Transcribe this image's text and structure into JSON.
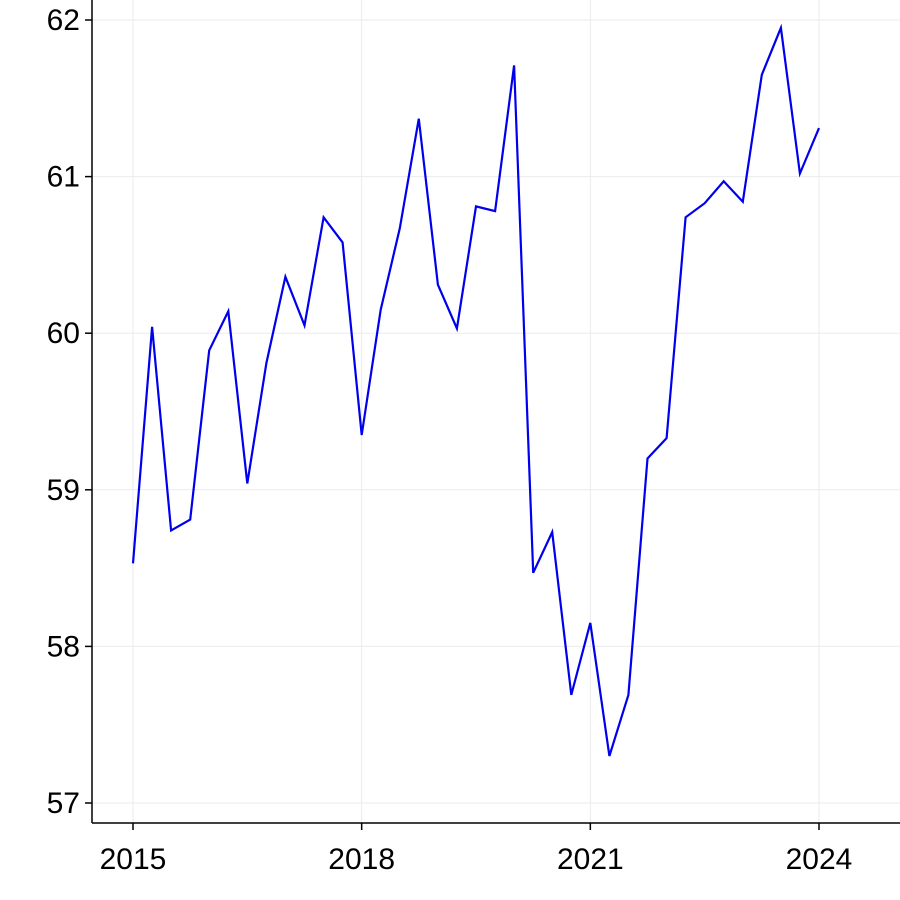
{
  "chart_data": {
    "type": "line",
    "title": "",
    "xlabel": "",
    "ylabel": "",
    "xlim": [
      2014.5,
      2025.0
    ],
    "ylim": [
      56.87,
      62.0
    ],
    "xticks": [
      2015,
      2018,
      2021,
      2024
    ],
    "xtick_labels": [
      "2015",
      "2018",
      "2021",
      "2024"
    ],
    "yticks": [
      57,
      58,
      59,
      60,
      61,
      62
    ],
    "ytick_labels": [
      "57",
      "58",
      "59",
      "60",
      "61",
      "62"
    ],
    "grid": true,
    "line_color": "#0000ee",
    "series": [
      {
        "x": [
          2015.0,
          2015.25,
          2015.5,
          2015.75,
          2016.0,
          2016.25,
          2016.5,
          2016.75,
          2017.0,
          2017.25,
          2017.5,
          2017.75,
          2018.0,
          2018.25,
          2018.5,
          2018.75,
          2019.0,
          2019.25,
          2019.5,
          2019.75,
          2020.0,
          2020.25,
          2020.5,
          2020.75,
          2021.0,
          2021.25,
          2021.5,
          2021.75,
          2022.0,
          2022.25,
          2022.5,
          2022.75,
          2023.0,
          2023.25,
          2023.5,
          2023.75,
          2024.0
        ],
        "y": [
          58.53,
          60.04,
          58.74,
          58.81,
          59.89,
          60.14,
          59.04,
          59.81,
          60.36,
          60.05,
          60.74,
          60.58,
          59.35,
          60.15,
          60.67,
          61.37,
          60.31,
          60.03,
          60.81,
          60.78,
          61.71,
          58.47,
          58.73,
          57.69,
          58.15,
          57.3,
          57.69,
          59.2,
          59.33,
          60.74,
          60.83,
          60.97,
          60.84,
          61.65,
          61.95,
          61.02,
          61.31
        ]
      }
    ]
  }
}
